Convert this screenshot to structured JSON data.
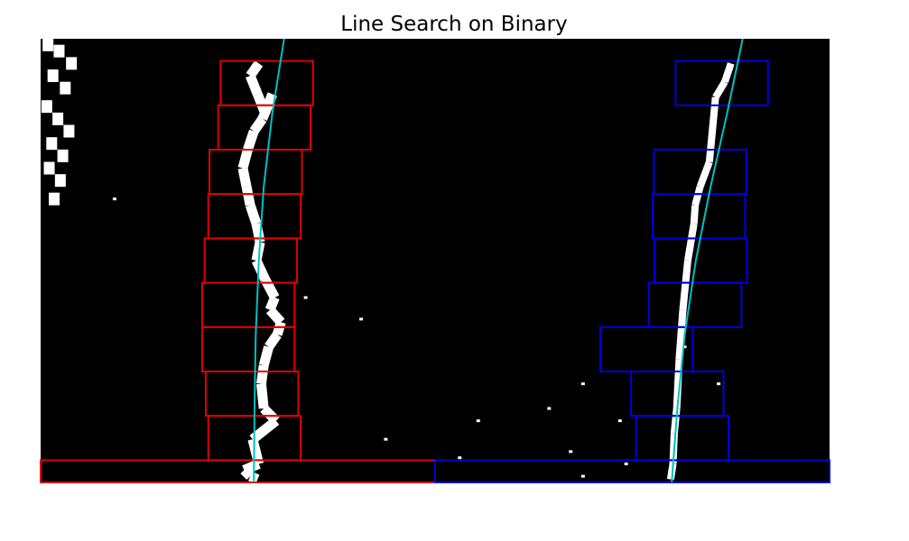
{
  "chart_data": {
    "type": "scatter",
    "title": "Line Search on Binary",
    "xlabel": "",
    "ylabel": "",
    "xlim": [
      0,
      1280
    ],
    "ylim": [
      720,
      0
    ],
    "axes_visible": false,
    "background": "#000000",
    "colors": {
      "pixels": "#ffffff",
      "left_windows": "#e00000",
      "right_windows": "#0000e0",
      "fit": "#00c0c0"
    },
    "left_windows": [
      {
        "x": [
          292,
          442
        ],
        "y": [
          36,
          108
        ]
      },
      {
        "x": [
          288,
          438
        ],
        "y": [
          108,
          180
        ]
      },
      {
        "x": [
          274,
          424
        ],
        "y": [
          180,
          252
        ]
      },
      {
        "x": [
          272,
          422
        ],
        "y": [
          252,
          324
        ]
      },
      {
        "x": [
          266,
          416
        ],
        "y": [
          324,
          396
        ]
      },
      {
        "x": [
          262,
          412
        ],
        "y": [
          396,
          468
        ]
      },
      {
        "x": [
          262,
          412
        ],
        "y": [
          468,
          540
        ]
      },
      {
        "x": [
          268,
          418
        ],
        "y": [
          540,
          612
        ]
      },
      {
        "x": [
          272,
          422
        ],
        "y": [
          612,
          684
        ]
      },
      {
        "x": [
          0,
          640
        ],
        "y": [
          684,
          720
        ]
      }
    ],
    "right_windows": [
      {
        "x": [
          1030,
          1180
        ],
        "y": [
          36,
          108
        ]
      },
      {
        "x": [
          995,
          1145
        ],
        "y": [
          180,
          252
        ]
      },
      {
        "x": [
          993,
          1143
        ],
        "y": [
          252,
          324
        ]
      },
      {
        "x": [
          996,
          1146
        ],
        "y": [
          324,
          396
        ]
      },
      {
        "x": [
          987,
          1137
        ],
        "y": [
          396,
          468
        ]
      },
      {
        "x": [
          908,
          1058
        ],
        "y": [
          468,
          540
        ]
      },
      {
        "x": [
          958,
          1108
        ],
        "y": [
          540,
          612
        ]
      },
      {
        "x": [
          966,
          1116
        ],
        "y": [
          612,
          684
        ]
      },
      {
        "x": [
          640,
          1280
        ],
        "y": [
          684,
          720
        ]
      }
    ],
    "left_fit": {
      "x": [
        395,
        376,
        362,
        354,
        349,
        347,
        346
      ],
      "y": [
        0,
        120,
        240,
        360,
        480,
        600,
        720
      ]
    },
    "right_fit": {
      "x": [
        1139,
        1114,
        1087,
        1063,
        1045,
        1033,
        1024
      ],
      "y": [
        0,
        120,
        240,
        360,
        480,
        600,
        720
      ]
    },
    "binary_pixels": {
      "left_lane": {
        "x": [
          354,
          340,
          352,
          364,
          376,
          360,
          346,
          336,
          328,
          334,
          340,
          350,
          356,
          350,
          364,
          380,
          372,
          390,
          384,
          370,
          362,
          358,
          362,
          382,
          344,
          354,
          330,
          340,
          352
        ],
        "y": [
          40,
          60,
          90,
          120,
          90,
          130,
          150,
          180,
          210,
          240,
          270,
          300,
          330,
          360,
          390,
          420,
          440,
          460,
          480,
          500,
          530,
          560,
          600,
          620,
          650,
          690,
          700,
          710,
          715
        ]
      },
      "right_lane": {
        "x": [
          1120,
          1110,
          1095,
          1085,
          1070,
          1062,
          1060,
          1050,
          1042,
          1036,
          1032,
          1028,
          1026,
          1022
        ],
        "y": [
          40,
          70,
          95,
          200,
          240,
          270,
          300,
          360,
          440,
          520,
          600,
          640,
          690,
          715
        ]
      },
      "left_edge_stripes": {
        "x": [
          12,
          30,
          50,
          20,
          40,
          10,
          28,
          46,
          18,
          36,
          14,
          32,
          22
        ],
        "y": [
          10,
          20,
          40,
          60,
          80,
          110,
          130,
          150,
          170,
          190,
          210,
          230,
          260
        ]
      },
      "noise": {
        "x": [
          120,
          430,
          520,
          710,
          825,
          880,
          860,
          940,
          1100,
          1045,
          560,
          680,
          950,
          880
        ],
        "y": [
          260,
          420,
          455,
          620,
          600,
          560,
          670,
          620,
          560,
          500,
          650,
          680,
          690,
          710
        ]
      }
    }
  }
}
